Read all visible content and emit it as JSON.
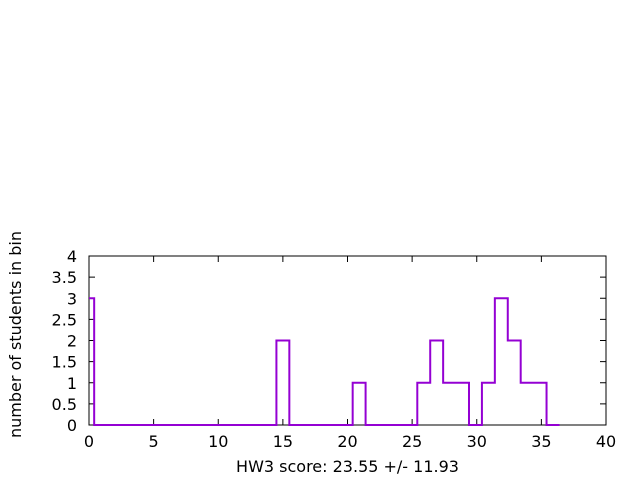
{
  "chart_data": {
    "type": "histogram",
    "xlabel": "HW3 score: 23.55 +/- 11.93",
    "ylabel": "number of students in bin",
    "xlim": [
      0,
      40
    ],
    "ylim": [
      0,
      4
    ],
    "x_ticks": [
      "0",
      "5",
      "10",
      "15",
      "20",
      "25",
      "30",
      "35",
      "40"
    ],
    "y_ticks": [
      "0",
      "0.5",
      "1",
      "1.5",
      "2",
      "2.5",
      "3",
      "3.5",
      "4"
    ],
    "grid": false,
    "series": [
      {
        "style": "step",
        "color": "#9400d3",
        "bins": [
          {
            "x0": 0.0,
            "x1": 0.4,
            "count": 3
          },
          {
            "x0": 0.4,
            "x1": 14.5,
            "count": 0
          },
          {
            "x0": 14.5,
            "x1": 15.5,
            "count": 2
          },
          {
            "x0": 15.5,
            "x1": 20.4,
            "count": 0
          },
          {
            "x0": 20.4,
            "x1": 21.4,
            "count": 1
          },
          {
            "x0": 21.4,
            "x1": 25.4,
            "count": 0
          },
          {
            "x0": 25.4,
            "x1": 26.4,
            "count": 1
          },
          {
            "x0": 26.4,
            "x1": 27.4,
            "count": 2
          },
          {
            "x0": 27.4,
            "x1": 29.4,
            "count": 1
          },
          {
            "x0": 29.4,
            "x1": 30.4,
            "count": 0
          },
          {
            "x0": 30.4,
            "x1": 31.4,
            "count": 1
          },
          {
            "x0": 31.4,
            "x1": 32.4,
            "count": 3
          },
          {
            "x0": 32.4,
            "x1": 33.4,
            "count": 2
          },
          {
            "x0": 33.4,
            "x1": 35.4,
            "count": 1
          },
          {
            "x0": 35.4,
            "x1": 36.4,
            "count": 0
          }
        ]
      }
    ]
  }
}
